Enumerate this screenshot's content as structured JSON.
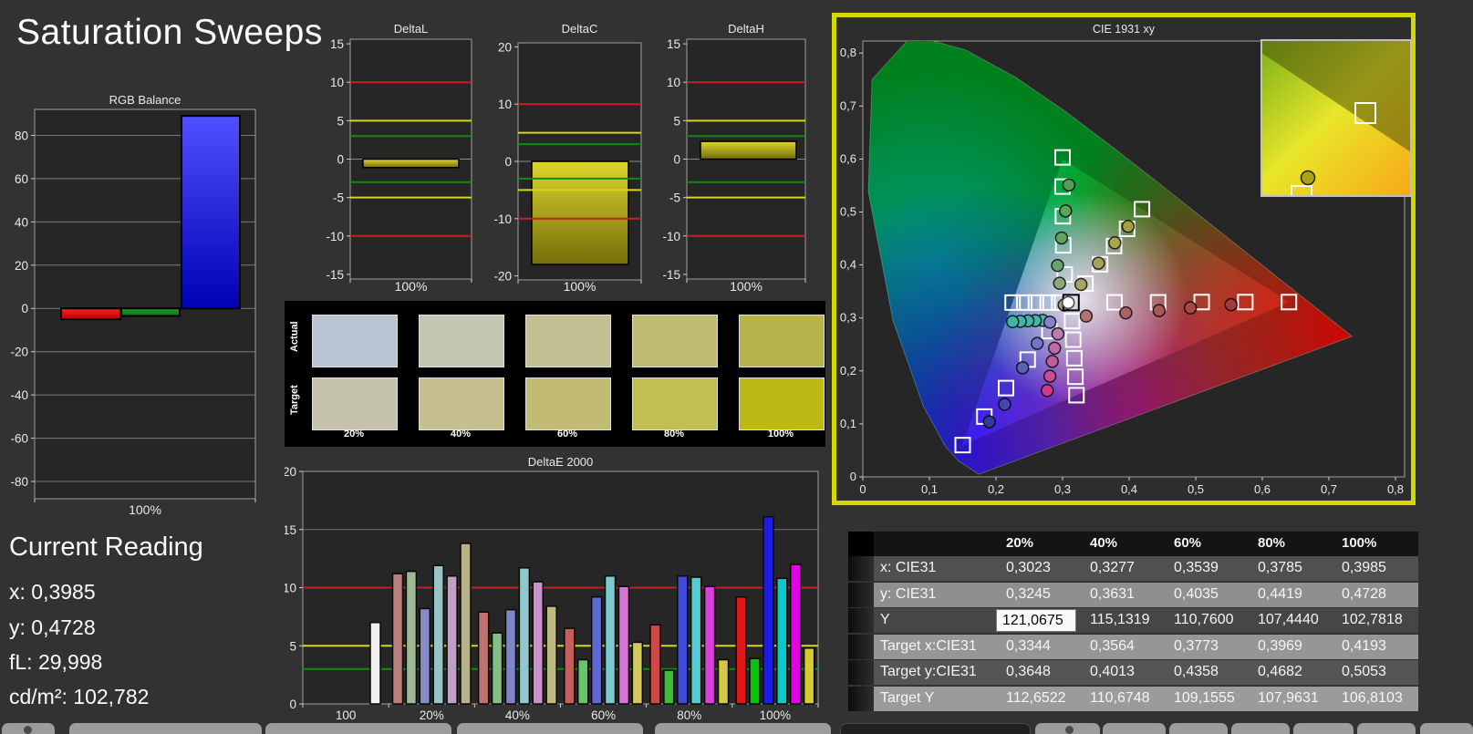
{
  "app": {
    "title": "Saturation Sweeps"
  },
  "current_reading": {
    "title": "Current Reading",
    "lines": [
      {
        "label": "x:",
        "value": "0,3985"
      },
      {
        "label": "y:",
        "value": "0,4728"
      },
      {
        "label": "fL:",
        "value": "29,998"
      },
      {
        "label": "cd/m²:",
        "value": "102,782"
      }
    ]
  },
  "chart_data": [
    {
      "id": "rgb_balance",
      "type": "bar",
      "title": "RGB Balance",
      "xlabel": "100%",
      "categories": [
        "Red",
        "Green",
        "Blue"
      ],
      "values": [
        -5,
        -3.5,
        89
      ],
      "colors": [
        "#e01010",
        "#149114",
        "#1a1ae6"
      ],
      "ylim": [
        -88,
        92
      ],
      "yticks": [
        80,
        60,
        40,
        20,
        0,
        -20,
        -40,
        -60,
        -80
      ],
      "grid": true
    },
    {
      "id": "delta_l",
      "type": "bar",
      "title": "DeltaL",
      "xlabel": "100%",
      "categories": [
        "100%"
      ],
      "values": [
        -1.1
      ],
      "bar_color": "#cfc51e",
      "ylim": [
        -15.6,
        15.6
      ],
      "yticks": [
        15,
        10,
        5,
        0,
        -5,
        -10,
        -15
      ],
      "limit_lines": [
        {
          "value": 10,
          "color": "#c42222"
        },
        {
          "value": 5,
          "color": "#d6d61a"
        },
        {
          "value": 3,
          "color": "#128a12"
        },
        {
          "value": -3,
          "color": "#128a12"
        },
        {
          "value": -5,
          "color": "#d6d61a"
        },
        {
          "value": -10,
          "color": "#c42222"
        }
      ]
    },
    {
      "id": "delta_c",
      "type": "bar",
      "title": "DeltaC",
      "xlabel": "100%",
      "categories": [
        "100%"
      ],
      "values": [
        -18
      ],
      "bar_color": "#cfc51e",
      "ylim": [
        -20.7,
        20.7
      ],
      "yticks": [
        20,
        10,
        0,
        -10,
        -20
      ],
      "limit_lines": [
        {
          "value": 10,
          "color": "#c42222"
        },
        {
          "value": 5,
          "color": "#d6d61a"
        },
        {
          "value": 3,
          "color": "#128a12"
        },
        {
          "value": -3,
          "color": "#128a12"
        },
        {
          "value": -5,
          "color": "#d6d61a"
        },
        {
          "value": -10,
          "color": "#c42222"
        }
      ]
    },
    {
      "id": "delta_h",
      "type": "bar",
      "title": "DeltaH",
      "xlabel": "100%",
      "categories": [
        "100%"
      ],
      "values": [
        2.3
      ],
      "bar_color": "#cfc51e",
      "ylim": [
        -15.6,
        15.6
      ],
      "yticks": [
        15,
        10,
        5,
        0,
        -5,
        -10,
        -15
      ],
      "limit_lines": [
        {
          "value": 10,
          "color": "#c42222"
        },
        {
          "value": 5,
          "color": "#d6d61a"
        },
        {
          "value": 3,
          "color": "#128a12"
        },
        {
          "value": -3,
          "color": "#128a12"
        },
        {
          "value": -5,
          "color": "#d6d61a"
        },
        {
          "value": -10,
          "color": "#c42222"
        }
      ]
    },
    {
      "id": "saturation_swatches",
      "type": "table",
      "row_labels": [
        "Actual",
        "Target"
      ],
      "categories": [
        "20%",
        "40%",
        "60%",
        "80%",
        "100%"
      ],
      "actual_colors": [
        "#b9c4d2",
        "#c4c6b3",
        "#c3bf93",
        "#bfbc72",
        "#b7b34c"
      ],
      "target_colors": [
        "#c4c2ab",
        "#c6c08f",
        "#c2bb74",
        "#c3be50",
        "#bcb814"
      ]
    },
    {
      "id": "delta_e_2000",
      "type": "bar",
      "title": "DeltaE 2000",
      "ylim": [
        0,
        20
      ],
      "yticks": [
        0,
        5,
        10,
        15,
        20
      ],
      "limit_lines": [
        {
          "value": 10,
          "color": "#c42222"
        },
        {
          "value": 5,
          "color": "#d6d61a"
        },
        {
          "value": 3,
          "color": "#128a12"
        }
      ],
      "groups": [
        {
          "label": "100",
          "bars": [
            {
              "name": "white",
              "value": 7.0,
              "color": "#f0f0f0"
            }
          ]
        },
        {
          "label": "20%",
          "bars": [
            {
              "name": "red",
              "value": 11.2,
              "color": "#b97e7e"
            },
            {
              "name": "green",
              "value": 11.4,
              "color": "#9fb894"
            },
            {
              "name": "blue",
              "value": 8.2,
              "color": "#888cc6"
            },
            {
              "name": "cyan",
              "value": 11.9,
              "color": "#98c4c6"
            },
            {
              "name": "magenta",
              "value": 11.0,
              "color": "#c19fc6"
            },
            {
              "name": "yellow",
              "value": 13.8,
              "color": "#b7b28b"
            }
          ]
        },
        {
          "label": "40%",
          "bars": [
            {
              "name": "red",
              "value": 7.9,
              "color": "#bf7272"
            },
            {
              "name": "green",
              "value": 6.1,
              "color": "#85bf85"
            },
            {
              "name": "blue",
              "value": 8.1,
              "color": "#7f85cb"
            },
            {
              "name": "cyan",
              "value": 11.7,
              "color": "#90c8cb"
            },
            {
              "name": "magenta",
              "value": 10.5,
              "color": "#cb91cb"
            },
            {
              "name": "yellow",
              "value": 8.4,
              "color": "#bfba80"
            }
          ]
        },
        {
          "label": "60%",
          "bars": [
            {
              "name": "red",
              "value": 6.5,
              "color": "#c65e5e"
            },
            {
              "name": "green",
              "value": 3.8,
              "color": "#68c468"
            },
            {
              "name": "blue",
              "value": 9.2,
              "color": "#6068d1"
            },
            {
              "name": "cyan",
              "value": 11.0,
              "color": "#7acad1"
            },
            {
              "name": "magenta",
              "value": 10.1,
              "color": "#d675d6"
            },
            {
              "name": "yellow",
              "value": 5.3,
              "color": "#d1c960"
            }
          ]
        },
        {
          "label": "80%",
          "bars": [
            {
              "name": "red",
              "value": 6.8,
              "color": "#ce4848"
            },
            {
              "name": "green",
              "value": 2.9,
              "color": "#3abd3a"
            },
            {
              "name": "blue",
              "value": 11.0,
              "color": "#3e4bd8"
            },
            {
              "name": "cyan",
              "value": 10.9,
              "color": "#54cad1"
            },
            {
              "name": "magenta",
              "value": 10.1,
              "color": "#da41da"
            },
            {
              "name": "yellow",
              "value": 3.8,
              "color": "#d3cb47"
            }
          ]
        },
        {
          "label": "100%",
          "bars": [
            {
              "name": "red",
              "value": 9.2,
              "color": "#df1616"
            },
            {
              "name": "green",
              "value": 3.9,
              "color": "#0bc20b"
            },
            {
              "name": "blue",
              "value": 16.1,
              "color": "#1e1ee2"
            },
            {
              "name": "cyan",
              "value": 10.8,
              "color": "#07cbcb"
            },
            {
              "name": "magenta",
              "value": 12.0,
              "color": "#df07df"
            },
            {
              "name": "yellow",
              "value": 4.8,
              "color": "#d8cd30"
            }
          ]
        }
      ]
    },
    {
      "id": "cie_1931_xy",
      "type": "scatter",
      "title": "CIE 1931 xy",
      "xlim": [
        0,
        0.82
      ],
      "ylim": [
        0,
        0.823
      ],
      "xtick_labels": [
        "0",
        "0,1",
        "0,2",
        "0,3",
        "0,4",
        "0,5",
        "0,6",
        "0,7",
        "0,8"
      ],
      "ytick_labels": [
        "0",
        "0,1",
        "0,2",
        "0,3",
        "0,4",
        "0,5",
        "0,6",
        "0,7",
        "0,8"
      ],
      "gamut_triangle": {
        "red": [
          0.64,
          0.33
        ],
        "green": [
          0.3,
          0.6
        ],
        "blue": [
          0.15,
          0.06
        ]
      },
      "white_point": {
        "target": [
          0.3127,
          0.329
        ],
        "measured": [
          0.3085,
          0.329
        ]
      },
      "sweeps": [
        {
          "name": "green",
          "targets": [
            [
              0.3032,
              0.382
            ],
            [
              0.301,
              0.437
            ],
            [
              0.3005,
              0.492
            ],
            [
              0.3,
              0.548
            ],
            [
              0.3,
              0.603
            ]
          ],
          "measured": [
            [
              0.2955,
              0.3655
            ],
            [
              0.2925,
              0.399
            ],
            [
              0.2985,
              0.451
            ],
            [
              0.3045,
              0.502
            ],
            [
              0.3095,
              0.551
            ]
          ],
          "dot_colors": [
            "#8aa878",
            "#6ba06b",
            "#61a361",
            "#58a458",
            "#55a055"
          ]
        },
        {
          "name": "yellow",
          "targets": [
            [
              0.3344,
              0.3648
            ],
            [
              0.3564,
              0.4013
            ],
            [
              0.3773,
              0.4358
            ],
            [
              0.3969,
              0.4682
            ],
            [
              0.4193,
              0.5053
            ]
          ],
          "measured": [
            [
              0.3023,
              0.3245
            ],
            [
              0.3277,
              0.3631
            ],
            [
              0.3539,
              0.4035
            ],
            [
              0.3785,
              0.4419
            ],
            [
              0.3985,
              0.4728
            ]
          ],
          "dot_colors": [
            "#a09a80",
            "#a8a468",
            "#a8a455",
            "#a8a648",
            "#a4a03c"
          ]
        },
        {
          "name": "red",
          "targets": [
            [
              0.378,
              0.3295
            ],
            [
              0.4435,
              0.3295
            ],
            [
              0.509,
              0.33
            ],
            [
              0.5745,
              0.33
            ],
            [
              0.64,
              0.33
            ]
          ],
          "measured": [
            [
              0.3355,
              0.3035
            ],
            [
              0.395,
              0.3095
            ],
            [
              0.445,
              0.314
            ],
            [
              0.492,
              0.319
            ],
            [
              0.553,
              0.325
            ]
          ],
          "dot_colors": [
            "#b07272",
            "#b06262",
            "#ac5858",
            "#a84848",
            "#a43a3a"
          ]
        },
        {
          "name": "cyan",
          "targets": [
            [
              0.2951,
              0.329
            ],
            [
              0.2776,
              0.329
            ],
            [
              0.26,
              0.329
            ],
            [
              0.2425,
              0.329
            ],
            [
              0.225,
              0.329
            ]
          ],
          "measured": [
            [
              0.27,
              0.2955
            ],
            [
              0.259,
              0.295
            ],
            [
              0.248,
              0.2945
            ],
            [
              0.2365,
              0.2935
            ],
            [
              0.225,
              0.293
            ]
          ],
          "dot_colors": [
            "#52b0a4",
            "#4cb2a6",
            "#46b4a8",
            "#40b6aa",
            "#3ab8ac"
          ]
        },
        {
          "name": "magenta",
          "targets": [
            [
              0.3143,
              0.294
            ],
            [
              0.316,
              0.259
            ],
            [
              0.3176,
              0.224
            ],
            [
              0.3193,
              0.189
            ],
            [
              0.3209,
              0.1542
            ]
          ],
          "measured": [
            [
              0.293,
              0.27
            ],
            [
              0.288,
              0.243
            ],
            [
              0.2845,
              0.218
            ],
            [
              0.281,
              0.19
            ],
            [
              0.277,
              0.163
            ]
          ],
          "dot_colors": [
            "#bc7cac",
            "#bc6ca4",
            "#c05c9c",
            "#c84c94",
            "#d03a8c"
          ]
        },
        {
          "name": "blue",
          "targets": [
            [
              0.2802,
              0.2752
            ],
            [
              0.2476,
              0.2214
            ],
            [
              0.2151,
              0.1676
            ],
            [
              0.1825,
              0.1138
            ],
            [
              0.15,
              0.06
            ]
          ],
          "measured": [
            [
              0.281,
              0.292
            ],
            [
              0.262,
              0.252
            ],
            [
              0.24,
              0.206
            ],
            [
              0.213,
              0.137
            ],
            [
              0.19,
              0.104
            ]
          ],
          "dot_colors": [
            "#8484cc",
            "#6f74c4",
            "#5a60b8",
            "#4448aa",
            "#333a9e"
          ]
        }
      ],
      "inset": {
        "target": [
          0.4193,
          0.5053
        ],
        "measured": [
          0.3985,
          0.4728
        ]
      }
    }
  ],
  "results_table": {
    "headers": [
      "",
      "20%",
      "40%",
      "60%",
      "80%",
      "100%"
    ],
    "rows": [
      {
        "label": "x: CIE31",
        "values": [
          "0,3023",
          "0,3277",
          "0,3539",
          "0,3785",
          "0,3985"
        ]
      },
      {
        "label": "y: CIE31",
        "values": [
          "0,3245",
          "0,3631",
          "0,4035",
          "0,4419",
          "0,4728"
        ]
      },
      {
        "label": "Y",
        "values": [
          "121,0675",
          "115,1319",
          "110,7600",
          "107,4440",
          "102,7818"
        ]
      },
      {
        "label": "Target x:CIE31",
        "values": [
          "0,3344",
          "0,3564",
          "0,3773",
          "0,3969",
          "0,4193"
        ]
      },
      {
        "label": "Target y:CIE31",
        "values": [
          "0,3648",
          "0,4013",
          "0,4358",
          "0,4682",
          "0,5053"
        ]
      },
      {
        "label": "Target Y",
        "values": [
          "112,6522",
          "110,6748",
          "109,1555",
          "107,9631",
          "106,8103"
        ]
      }
    ],
    "selected": {
      "row": 2,
      "col": 0
    }
  },
  "colors": {
    "background": "#323232",
    "plot_bg": "#262626",
    "panel_highlight": "#d6d600",
    "limit_red": "#c42222",
    "limit_yellow": "#d6d61a",
    "limit_green": "#128a12"
  }
}
